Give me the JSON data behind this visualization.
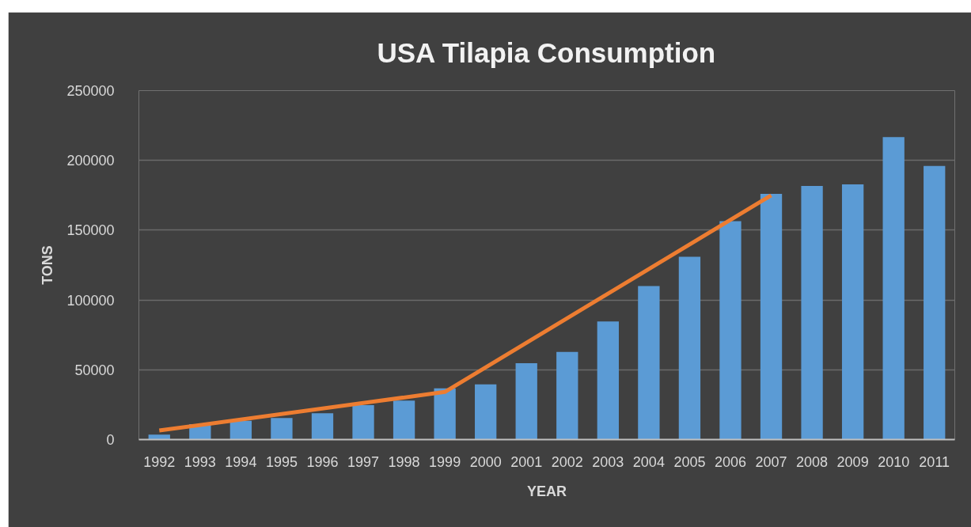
{
  "chart_data": {
    "type": "bar",
    "title": "USA Tilapia Consumption",
    "xlabel": "YEAR",
    "ylabel": "TONS",
    "x": [
      1992,
      1993,
      1994,
      1995,
      1996,
      1997,
      1998,
      1999,
      2000,
      2001,
      2002,
      2003,
      2004,
      2005,
      2006,
      2007,
      2008,
      2009,
      2010,
      2011
    ],
    "series": [
      {
        "color": "#5b9bd5",
        "values": [
          3500,
          11000,
          13500,
          15500,
          18800,
          24600,
          27900,
          36700,
          39600,
          54700,
          62800,
          84600,
          110000,
          131000,
          156400,
          176000,
          181700,
          182800,
          216700,
          196000
        ]
      },
      {
        "type": "line",
        "color": "#ed7d31",
        "x": [
          1992,
          1999,
          2007
        ],
        "values": [
          6500,
          34100,
          175000
        ]
      }
    ],
    "xlim": [
      1991.5,
      2011.5
    ],
    "xticks": [
      1992,
      1993,
      1994,
      1995,
      1996,
      1997,
      1998,
      1999,
      2000,
      2001,
      2002,
      2003,
      2004,
      2005,
      2006,
      2007,
      2008,
      2009,
      2010,
      2011
    ],
    "ylim": [
      0,
      250000
    ],
    "yticks": [
      0,
      50000,
      100000,
      150000,
      200000,
      250000
    ],
    "grid": "y"
  }
}
